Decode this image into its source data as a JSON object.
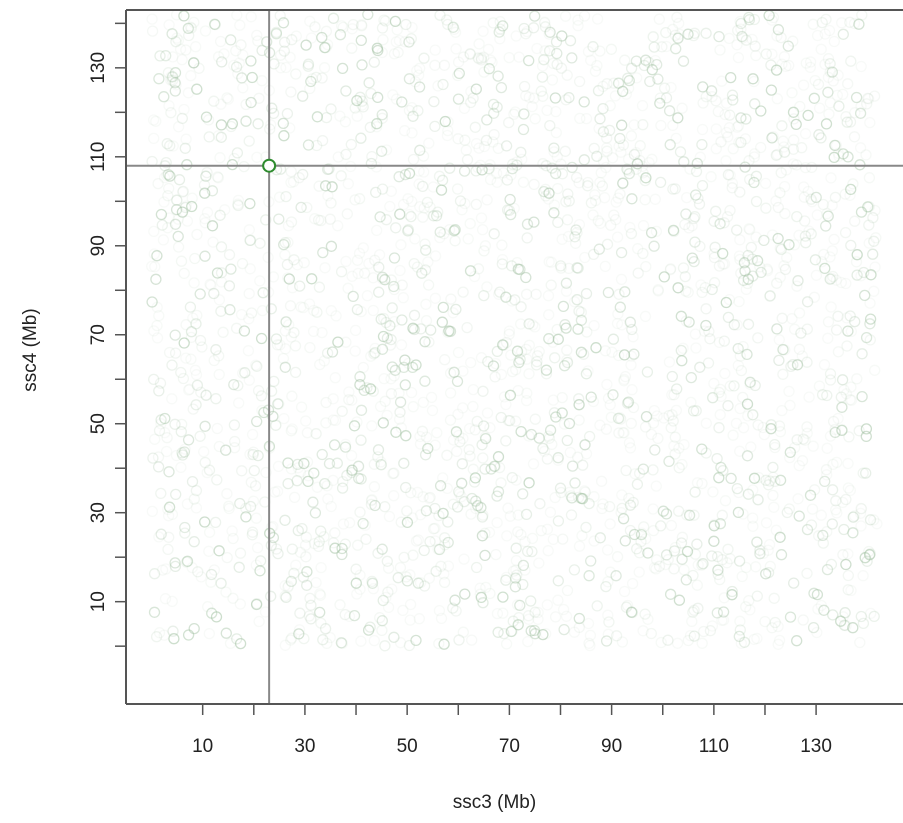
{
  "chart_data": {
    "type": "scatter",
    "title": "",
    "xlabel": "ssc3 (Mb)",
    "ylabel": "ssc4 (Mb)",
    "xlim": [
      -5,
      147
    ],
    "ylim": [
      -13,
      143
    ],
    "x_major_ticks": [
      10,
      30,
      50,
      70,
      90,
      110,
      130
    ],
    "x_minor_ticks": [
      20,
      40,
      60,
      80,
      100,
      120
    ],
    "y_major_ticks": [
      10,
      30,
      50,
      70,
      90,
      110,
      130
    ],
    "y_minor_ticks": [
      0,
      20,
      40,
      60,
      80,
      100,
      120,
      140
    ],
    "grid": false,
    "point_style": "open circles, faint semi-transparent green",
    "point_color": "#9fbf9f",
    "point_density": "dense uniform cloud covering x 0-142 Mb and y 0-142 Mb (~2500 points)",
    "highlight_point": {
      "x": 23,
      "y": 108,
      "color": "#2e8b2e"
    },
    "crosshair": {
      "x": 23,
      "y": 108,
      "color": "#888888"
    },
    "axes_color": "#555555"
  }
}
